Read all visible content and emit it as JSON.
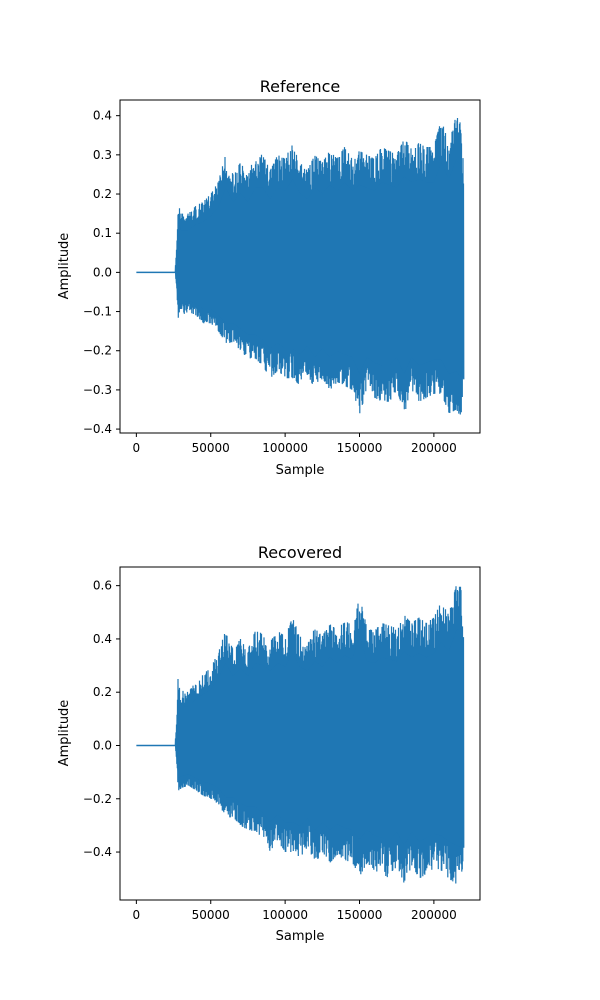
{
  "chart_data": [
    {
      "type": "line",
      "title": "Reference",
      "xlabel": "Sample",
      "ylabel": "Amplitude",
      "xlim": [
        -11000,
        231000
      ],
      "ylim": [
        -0.41,
        0.44
      ],
      "xticks": [
        0,
        50000,
        100000,
        150000,
        200000
      ],
      "xtick_labels": [
        "0",
        "50000",
        "100000",
        "150000",
        "200000"
      ],
      "yticks": [
        -0.4,
        -0.3,
        -0.2,
        -0.1,
        0.0,
        0.1,
        0.2,
        0.3,
        0.4
      ],
      "ytick_labels": [
        "−0.4",
        "−0.3",
        "−0.2",
        "−0.1",
        "0.0",
        "0.1",
        "0.2",
        "0.3",
        "0.4"
      ],
      "grid": false,
      "color": "#1f77b4",
      "series": [
        {
          "envelope_x": [
            0,
            26000,
            27000,
            28000,
            30000,
            35000,
            40000,
            45000,
            50000,
            55000,
            60000,
            65000,
            70000,
            75000,
            80000,
            85000,
            90000,
            95000,
            100000,
            105000,
            110000,
            115000,
            120000,
            125000,
            130000,
            135000,
            140000,
            145000,
            150000,
            155000,
            160000,
            165000,
            170000,
            175000,
            180000,
            185000,
            190000,
            195000,
            200000,
            205000,
            210000,
            215000,
            218000,
            220000
          ],
          "upper": [
            0.0,
            0.0,
            0.06,
            0.18,
            0.15,
            0.15,
            0.17,
            0.18,
            0.2,
            0.23,
            0.3,
            0.25,
            0.28,
            0.25,
            0.3,
            0.3,
            0.26,
            0.3,
            0.29,
            0.33,
            0.28,
            0.26,
            0.3,
            0.28,
            0.31,
            0.29,
            0.32,
            0.29,
            0.31,
            0.3,
            0.29,
            0.32,
            0.31,
            0.3,
            0.34,
            0.32,
            0.33,
            0.32,
            0.32,
            0.39,
            0.33,
            0.4,
            0.38,
            0.28
          ],
          "lower": [
            0.0,
            0.0,
            -0.05,
            -0.12,
            -0.11,
            -0.1,
            -0.11,
            -0.13,
            -0.13,
            -0.15,
            -0.18,
            -0.18,
            -0.2,
            -0.22,
            -0.22,
            -0.24,
            -0.27,
            -0.25,
            -0.27,
            -0.27,
            -0.29,
            -0.26,
            -0.3,
            -0.27,
            -0.3,
            -0.28,
            -0.29,
            -0.3,
            -0.36,
            -0.3,
            -0.32,
            -0.33,
            -0.33,
            -0.3,
            -0.36,
            -0.3,
            -0.33,
            -0.32,
            -0.31,
            -0.31,
            -0.36,
            -0.35,
            -0.37,
            -0.27
          ]
        }
      ]
    },
    {
      "type": "line",
      "title": "Recovered",
      "xlabel": "Sample",
      "ylabel": "Amplitude",
      "xlim": [
        -11000,
        231000
      ],
      "ylim": [
        -0.58,
        0.67
      ],
      "xticks": [
        0,
        50000,
        100000,
        150000,
        200000
      ],
      "xtick_labels": [
        "0",
        "50000",
        "100000",
        "150000",
        "200000"
      ],
      "yticks": [
        -0.4,
        -0.2,
        0.0,
        0.2,
        0.4,
        0.6
      ],
      "ytick_labels": [
        "−0.4",
        "−0.2",
        "0.0",
        "0.2",
        "0.4",
        "0.6"
      ],
      "grid": false,
      "color": "#1f77b4",
      "series": [
        {
          "envelope_x": [
            0,
            26000,
            27000,
            28000,
            30000,
            35000,
            40000,
            45000,
            50000,
            55000,
            60000,
            65000,
            70000,
            75000,
            80000,
            85000,
            90000,
            95000,
            100000,
            105000,
            110000,
            115000,
            120000,
            125000,
            130000,
            135000,
            140000,
            145000,
            150000,
            155000,
            160000,
            165000,
            170000,
            175000,
            180000,
            185000,
            190000,
            195000,
            200000,
            205000,
            210000,
            215000,
            218000,
            220000
          ],
          "upper": [
            0.0,
            0.0,
            0.08,
            0.25,
            0.21,
            0.2,
            0.24,
            0.27,
            0.29,
            0.35,
            0.43,
            0.36,
            0.4,
            0.36,
            0.43,
            0.42,
            0.39,
            0.43,
            0.41,
            0.48,
            0.41,
            0.39,
            0.44,
            0.41,
            0.46,
            0.43,
            0.47,
            0.45,
            0.57,
            0.44,
            0.43,
            0.46,
            0.45,
            0.44,
            0.49,
            0.46,
            0.48,
            0.46,
            0.48,
            0.54,
            0.49,
            0.6,
            0.61,
            0.4
          ],
          "lower": [
            0.0,
            0.0,
            -0.07,
            -0.17,
            -0.16,
            -0.15,
            -0.17,
            -0.19,
            -0.2,
            -0.22,
            -0.27,
            -0.27,
            -0.3,
            -0.32,
            -0.32,
            -0.35,
            -0.4,
            -0.36,
            -0.4,
            -0.4,
            -0.42,
            -0.38,
            -0.44,
            -0.4,
            -0.44,
            -0.41,
            -0.43,
            -0.44,
            -0.49,
            -0.44,
            -0.47,
            -0.48,
            -0.5,
            -0.45,
            -0.52,
            -0.45,
            -0.5,
            -0.48,
            -0.46,
            -0.47,
            -0.5,
            -0.52,
            -0.53,
            -0.39
          ]
        }
      ]
    }
  ]
}
